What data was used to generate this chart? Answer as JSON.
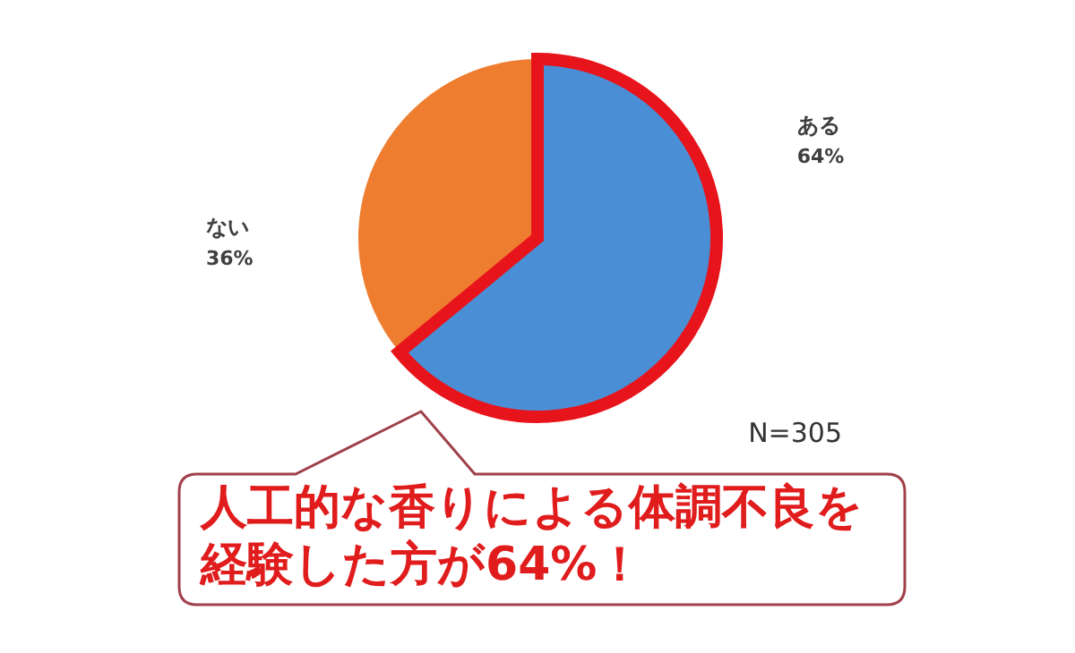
{
  "chart_data": {
    "type": "pie",
    "categories": [
      "ある",
      "ない"
    ],
    "values": [
      64,
      36
    ],
    "colors": [
      "#4a8fd6",
      "#ee7d30"
    ],
    "value_labels": [
      "64%",
      "36%"
    ],
    "annotations": [
      "N=305",
      "人工的な香りによる体調不良を経験した方が64%！"
    ]
  }
}
